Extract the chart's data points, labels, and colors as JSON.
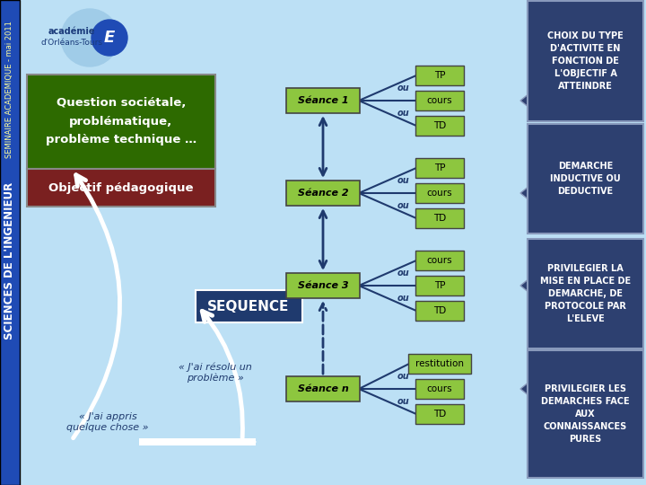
{
  "bg_color": "#bce0f5",
  "left_bar_color": "#1f4bb5",
  "left_vertical_text1": "SCIENCES DE L'INGENIEUR",
  "left_vertical_text2": "SEMINAIRE ACADEMIQUE - mai 2011",
  "green_box_text": "Question sociétale,\nproblématique,\nproblème technique …",
  "red_box_text": "Objectif pédagogique",
  "sequence_text": "SEQUENCE",
  "seance_labels": [
    "Séance 1",
    "Séance 2",
    "Séance 3",
    "Séance n"
  ],
  "seance_acts": [
    [
      "TP",
      "cours",
      "TD"
    ],
    [
      "TP",
      "cours",
      "TD"
    ],
    [
      "cours",
      "TP",
      "TD"
    ],
    [
      "restitution",
      "cours",
      "TD"
    ]
  ],
  "callout_texts": [
    "CHOIX DU TYPE\nD'ACTIVITE EN\nFONCTION DE\nL'OBJECTIF A\nATTEINDRE",
    "DEMARCHE\nINDUCTIVE OU\nDEDUCTIVE",
    "PRIVILEGIER LA\nMISE EN PLACE DE\nDEMARCHE, DE\nPROTOCOLE PAR\nL'ELEVE",
    "PRIVILEGIER LES\nDEMARCHES FACE\nAUX\nCONNAISSANCES\nPURES"
  ],
  "quote1": "« J'ai résolu un\nproblème »",
  "quote2": "« J'ai appris\nquelque chose »",
  "green_color": "#8dc63f",
  "dark_green": "#2d6a00",
  "dark_red": "#7a2020",
  "navy": "#1f3a6e",
  "callout_dark": "#2d4070",
  "seance_box_color": "#8dc63f",
  "seance_text_color": "#000000"
}
